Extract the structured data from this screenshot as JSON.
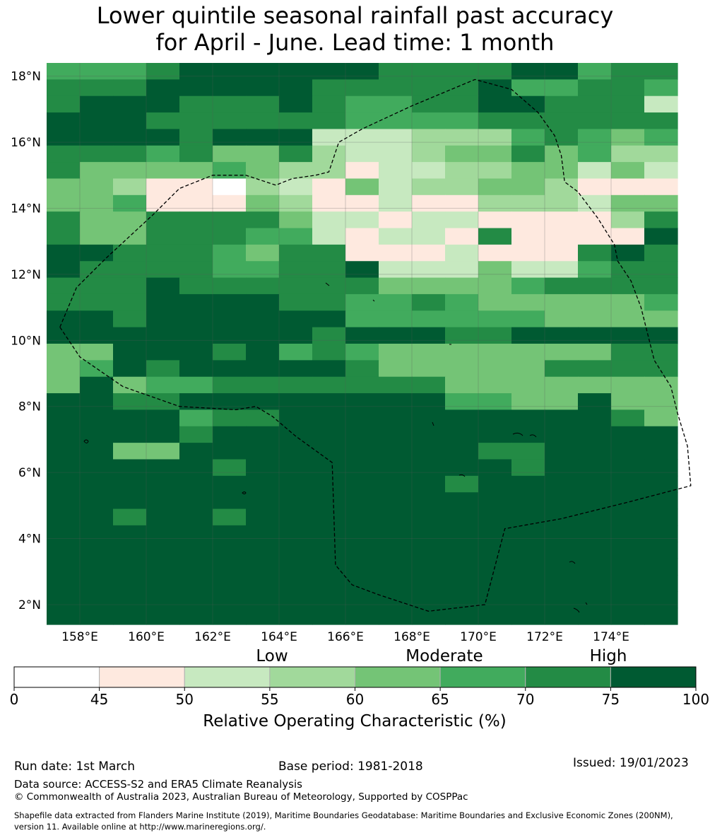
{
  "title": {
    "line1": "Lower quintile seasonal rainfall past accuracy",
    "line2": "for April - June. Lead time: 1 month"
  },
  "map": {
    "lat_labels": [
      "18°N",
      "16°N",
      "14°N",
      "12°N",
      "10°N",
      "8°N",
      "6°N",
      "4°N",
      "2°N"
    ],
    "lat_values": [
      18,
      16,
      14,
      12,
      10,
      8,
      6,
      4,
      2
    ],
    "lon_labels": [
      "158°E",
      "160°E",
      "162°E",
      "164°E",
      "166°E",
      "168°E",
      "170°E",
      "172°E",
      "174°E"
    ],
    "lon_values": [
      158,
      160,
      162,
      164,
      166,
      168,
      170,
      172,
      174
    ],
    "lon_range": [
      157,
      176
    ],
    "lat_range": [
      1.4,
      18.4
    ],
    "cell_step_deg": 0.833,
    "rows_north_to_south": [
      "5556777777666677566",
      "6667777766666755665",
      "6777666765566776662",
      "7776666665555666666",
      "7777677722233356545",
      "6665644632234464533",
      "6444454331223344242",
      "4431103214233443111",
      "4451114311211333244",
      "6446666422122111136",
      "6446665521221611117",
      "7766654661112111676",
      "7666655667222422566",
      "6667666666444456666",
      "6667777665565444445",
      "7767777775555554444",
      "7777777767776677777",
      "4477767565444444466",
      "4576777776444446666",
      "4745566666664444444",
      "7766777777775544744",
      "7777566777777777764",
      "7777677777777777777",
      "7744777777777667777",
      "7777767777777767777",
      "7777777777776777777",
      "7777777777777777777",
      "7767767777777777777",
      "7777777777777777777",
      "7777777777777777777",
      "7777777777777777777",
      "7777777777777777777",
      "7777777777777777777",
      "7777777777777777777"
    ],
    "eez_boundary_path": [
      [
        157.4,
        10.4
      ],
      [
        157.9,
        11.6
      ],
      [
        158.8,
        12.5
      ],
      [
        160.2,
        13.8
      ],
      [
        161.0,
        14.6
      ],
      [
        162.0,
        15.0
      ],
      [
        163.0,
        15.0
      ],
      [
        163.9,
        14.7
      ],
      [
        164.4,
        14.9
      ],
      [
        165.1,
        15.0
      ],
      [
        165.5,
        15.1
      ],
      [
        165.8,
        16.0
      ],
      [
        166.5,
        16.4
      ],
      [
        168.0,
        17.1
      ],
      [
        169.9,
        17.9
      ],
      [
        171.0,
        17.6
      ],
      [
        171.8,
        16.9
      ],
      [
        172.3,
        16.2
      ],
      [
        172.5,
        15.6
      ],
      [
        172.6,
        14.8
      ],
      [
        173.0,
        14.5
      ],
      [
        173.6,
        13.7
      ],
      [
        174.1,
        12.9
      ],
      [
        174.2,
        12.4
      ],
      [
        174.6,
        11.8
      ],
      [
        174.9,
        11.0
      ],
      [
        175.1,
        10.2
      ],
      [
        175.3,
        9.4
      ],
      [
        175.8,
        8.6
      ],
      [
        176.0,
        7.8
      ],
      [
        176.3,
        6.8
      ],
      [
        176.4,
        5.6
      ],
      [
        174.5,
        5.1
      ],
      [
        172.5,
        4.6
      ],
      [
        170.8,
        4.3
      ],
      [
        170.2,
        2.0
      ],
      [
        168.5,
        1.8
      ],
      [
        167.0,
        2.3
      ],
      [
        166.2,
        2.6
      ],
      [
        165.7,
        3.2
      ],
      [
        165.6,
        6.3
      ],
      [
        164.5,
        7.1
      ],
      [
        163.8,
        7.7
      ],
      [
        163.3,
        8.0
      ],
      [
        162.7,
        7.9
      ],
      [
        161.0,
        8.0
      ],
      [
        159.3,
        8.6
      ],
      [
        158.0,
        9.5
      ],
      [
        157.4,
        10.4
      ]
    ]
  },
  "colorbar": {
    "category_labels": [
      "Low",
      "Moderate",
      "High"
    ],
    "ticks": [
      "0",
      "45",
      "50",
      "55",
      "60",
      "65",
      "70",
      "75",
      "100"
    ],
    "colors": [
      "#ffffff",
      "#fee9df",
      "#c7e9c0",
      "#a1d99b",
      "#74c476",
      "#41ab5d",
      "#238b45",
      "#005a32"
    ],
    "label": "Relative Operating Characteristic (%)"
  },
  "footer": {
    "run_date": "Run date: 1st March",
    "base_period": "Base period: 1981-2018",
    "issued": "Issued: 19/01/2023",
    "data_source": "Data source: ACCESS-S2 and ERA5 Climate Reanalysis",
    "copyright": "© Commonwealth of Australia 2023, Australian Bureau of Meteorology, Supported by COSPPac",
    "shapefile_line1": "Shapefile data extracted from Flanders Marine Institute (2019), Maritime Boundaries Geodatabase: Maritime Boundaries and Exclusive Economic Zones (200NM),",
    "shapefile_line2": "version 11. Available online at http://www.marineregions.org/."
  }
}
